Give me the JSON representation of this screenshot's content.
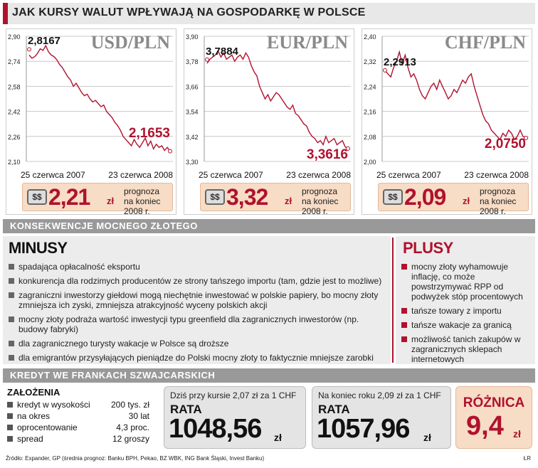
{
  "title": "JAK KURSY WALUT WPŁYWAJĄ NA GOSPODARKĘ W POLSCE",
  "forecast_text_line1": "prognoza",
  "forecast_text_line2": "na koniec 2008 r.",
  "currency_unit": "zł",
  "chart_data": [
    {
      "type": "line",
      "title": "USD/PLN",
      "x_start_label": "25 czerwca 2007",
      "x_end_label": "23 czerwca 2008",
      "yticks": [
        "2,90",
        "2,74",
        "2,58",
        "2,42",
        "2,26",
        "2,10"
      ],
      "ylim": [
        2.1,
        2.9
      ],
      "annotations": {
        "start": "2,8167",
        "end": "2,1653"
      },
      "start_value": 2.8167,
      "end_value": 2.1653,
      "values": [
        2.78,
        2.76,
        2.77,
        2.79,
        2.82,
        2.81,
        2.84,
        2.8,
        2.78,
        2.77,
        2.75,
        2.72,
        2.7,
        2.67,
        2.64,
        2.62,
        2.58,
        2.6,
        2.57,
        2.54,
        2.52,
        2.53,
        2.5,
        2.48,
        2.49,
        2.47,
        2.45,
        2.46,
        2.42,
        2.4,
        2.38,
        2.35,
        2.33,
        2.3,
        2.26,
        2.24,
        2.22,
        2.2,
        2.24,
        2.21,
        2.19,
        2.22,
        2.25,
        2.2,
        2.23,
        2.18,
        2.21,
        2.19,
        2.2,
        2.17,
        2.19,
        2.1653
      ],
      "forecast": "2,21"
    },
    {
      "type": "line",
      "title": "EUR/PLN",
      "x_start_label": "25 czerwca 2007",
      "x_end_label": "23 czerwca 2008",
      "yticks": [
        "3,90",
        "3,78",
        "3,66",
        "3,54",
        "3,42",
        "3,30"
      ],
      "ylim": [
        3.3,
        3.9
      ],
      "annotations": {
        "start": "3,7884",
        "end": "3,3616"
      },
      "start_value": 3.7884,
      "end_value": 3.3616,
      "values": [
        3.77,
        3.79,
        3.8,
        3.81,
        3.83,
        3.8,
        3.82,
        3.79,
        3.8,
        3.81,
        3.78,
        3.8,
        3.81,
        3.79,
        3.82,
        3.8,
        3.76,
        3.73,
        3.71,
        3.66,
        3.63,
        3.6,
        3.62,
        3.59,
        3.61,
        3.63,
        3.62,
        3.6,
        3.58,
        3.56,
        3.55,
        3.57,
        3.53,
        3.52,
        3.5,
        3.48,
        3.47,
        3.44,
        3.42,
        3.41,
        3.39,
        3.4,
        3.38,
        3.42,
        3.39,
        3.4,
        3.41,
        3.38,
        3.39,
        3.4,
        3.37,
        3.3616
      ],
      "forecast": "3,32"
    },
    {
      "type": "line",
      "title": "CHF/PLN",
      "x_start_label": "25 czerwca 2007",
      "x_end_label": "23 czerwca 2008",
      "yticks": [
        "2,40",
        "2,32",
        "2,24",
        "2,16",
        "2,08",
        "2,00"
      ],
      "ylim": [
        2.0,
        2.4
      ],
      "annotations": {
        "start": "2,2913",
        "end": "2,0750"
      },
      "start_value": 2.2913,
      "end_value": 2.075,
      "values": [
        2.29,
        2.28,
        2.27,
        2.3,
        2.32,
        2.35,
        2.31,
        2.34,
        2.3,
        2.27,
        2.28,
        2.26,
        2.23,
        2.21,
        2.2,
        2.22,
        2.24,
        2.25,
        2.23,
        2.26,
        2.24,
        2.22,
        2.2,
        2.21,
        2.23,
        2.22,
        2.24,
        2.26,
        2.25,
        2.27,
        2.28,
        2.24,
        2.21,
        2.18,
        2.15,
        2.13,
        2.12,
        2.1,
        2.09,
        2.08,
        2.07,
        2.09,
        2.08,
        2.1,
        2.09,
        2.07,
        2.08,
        2.1,
        2.08,
        2.075
      ],
      "forecast": "2,09"
    }
  ],
  "section1": "KONSEKWENCJE MOCNEGO ZŁOTEGO",
  "minus_title": "MINUSY",
  "minus_items": [
    "spadająca opłacalność eksportu",
    "konkurencja dla rodzimych producentów ze strony tańszego importu (tam, gdzie jest to możliwe)",
    "zagraniczni inwestorzy giełdowi mogą niechętnie inwestować w polskie papiery, bo mocny złoty zmniejsza ich zyski, zmniejsza atrakcyjność wyceny polskich akcji",
    "mocny złoty podraża wartość inwestycji typu greenfield dla zagranicznych inwestorów (np. budowy fabryki)",
    "dla zagranicznego turysty wakacje w Polsce są droższe",
    "dla emigrantów przysyłających pieniądze do Polski mocny złoty to faktycznie mniejsze zarobki"
  ],
  "plus_title": "PLUSY",
  "plus_items": [
    "mocny złoty wyhamowuje inflację, co może powstrzymywać RPP od podwyżek stóp procentowych",
    "tańsze towary z importu",
    "tańsze wakacje za granicą",
    "możliwość tanich zakupów w zagranicznych sklepach internetowych"
  ],
  "section2": "KREDYT WE FRANKACH SZWAJCARSKICH",
  "zal_title": "ZAŁOŻENIA",
  "zal_rows": [
    {
      "k": "kredyt w wysokości",
      "v": "200 tys. zł"
    },
    {
      "k": "na okres",
      "v": "30 lat"
    },
    {
      "k": "oprocentowanie",
      "v": "4,3 proc."
    },
    {
      "k": "spread",
      "v": "12 groszy"
    }
  ],
  "rata1": {
    "sub": "Dziś przy kursie 2,07 zł za 1 CHF",
    "label": "RATA",
    "value": "1048,56"
  },
  "rata2": {
    "sub": "Na koniec roku 2,09 zł za 1 CHF",
    "label": "RATA",
    "value": "1057,96"
  },
  "diff": {
    "label": "RÓŻNICA",
    "value": "9,4"
  },
  "source": "Źródło: Expander, GP (średnia prognoz: Banku BPH, Pekao, BZ WBK, ING Bank Śląski, Invest Banku)",
  "author": "ŁR",
  "colors": {
    "accent": "#b0122e",
    "forecast_bg": "#f7dcc6"
  }
}
